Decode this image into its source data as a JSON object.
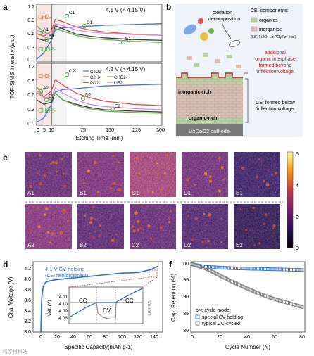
{
  "panels": {
    "a": {
      "label": "a",
      "ylabel": "TOF-SIMS Intensity (a.u.)",
      "xlabel": "Etching Time (min)",
      "xticks": [
        "0",
        "5",
        "10",
        "75",
        "150",
        "225",
        "300"
      ],
      "yticks": [
        "0.0",
        "0.3",
        "0.6",
        "0.9",
        "1.2"
      ],
      "top_title": "4.1 V (< 4.15 V)",
      "bottom_title": "4.2 V (> 4.15 V)",
      "species": {
        "ch": "CH2-",
        "cho": "CHO2-"
      },
      "legend": [
        "CoO2-",
        "C2H-",
        "PO2-",
        "CHO2-",
        "LiF2-"
      ],
      "points_top": [
        "A1",
        "B1",
        "C1",
        "D1",
        "E1"
      ],
      "points_bottom": [
        "A2",
        "B2",
        "C2",
        "D2",
        "E2"
      ]
    },
    "b": {
      "label": "b",
      "oxidation": "oxidation",
      "decomposition": "decomposition",
      "cei_title": "CEI components:",
      "organics": "organics",
      "inorganics": "inorganics",
      "inorganic_list": "(LiF, Li2O, LixPOyFz, etc.)",
      "additional": "additional",
      "organic_interphase": "organic interphase",
      "formed_beyond": "formed beyond",
      "inflection_q": "'inflection voltage'",
      "inorganic_rich": "inorganic-rich",
      "organic_rich": "organic-rich",
      "cei_below": "CEI formed below",
      "inflection_q2": "'inflection voltage'",
      "cathode": "LixCoO2 cathode"
    },
    "c": {
      "label": "c",
      "maps_top": [
        "A1",
        "B1",
        "C1",
        "D1",
        "E1"
      ],
      "maps_bottom": [
        "A2",
        "B2",
        "C2",
        "D2",
        "E2"
      ],
      "colorbar_ticks": [
        "6",
        "4",
        "2",
        "0"
      ]
    },
    "d": {
      "label": "d",
      "title": "4.1 V CV-holding",
      "subtitle": "(CEI reinforcement)",
      "ylabel": "Cha. Voltage (V)",
      "xlabel": "Specific Capacity(mAh g-1)",
      "xticks": [
        "0",
        "20",
        "40",
        "60",
        "80",
        "100",
        "120",
        "140"
      ],
      "yticks": [
        "3.0",
        "3.2",
        "3.4",
        "3.6",
        "3.8",
        "4.0",
        "4.2"
      ],
      "inset_ylabel": "Volt. (V)",
      "inset_yticks": [
        "4.11",
        "4.10",
        "4.09",
        "4.08"
      ],
      "inset_regions": [
        "CC",
        "CV",
        "CC"
      ],
      "inset_current": "Current"
    },
    "f": {
      "label": "f",
      "ylabel": "Cap. Retention (%)",
      "xlabel": "Cycle Number (N)",
      "xticks": [
        "0",
        "20",
        "40",
        "60",
        "80"
      ],
      "yticks": [
        "80",
        "85",
        "90",
        "95",
        "100"
      ],
      "legend_title": "pre-cycle mode:",
      "legend": [
        "special CV-holding",
        "typical CC-cycled"
      ]
    }
  },
  "watermark": "科学材料站",
  "chart_data": [
    {
      "type": "line",
      "title": "4.1 V (< 4.15 V)",
      "xlabel": "Etching Time (min)",
      "ylabel": "TOF-SIMS Intensity (a.u.)",
      "ylim": [
        0,
        1.35
      ],
      "x": [
        0,
        5,
        10,
        20,
        40,
        75,
        110,
        150,
        225,
        300
      ],
      "series": [
        {
          "name": "CoO2-",
          "values": [
            0.05,
            0.2,
            0.5,
            0.75,
            0.8,
            0.82,
            0.84,
            0.86,
            0.88,
            0.9
          ]
        },
        {
          "name": "C2H-",
          "values": [
            0.66,
            0.6,
            0.72,
            1.0,
            0.95,
            0.82,
            0.75,
            0.7,
            0.65,
            0.62
          ]
        },
        {
          "name": "PO2-",
          "values": [
            0.55,
            0.5,
            0.55,
            0.85,
            0.78,
            0.65,
            0.6,
            0.56,
            0.52,
            0.5
          ]
        },
        {
          "name": "CHO2-",
          "values": [
            0.85,
            0.7,
            0.62,
            0.78,
            0.72,
            0.62,
            0.55,
            0.52,
            0.48,
            0.45
          ]
        },
        {
          "name": "LiF2-",
          "values": [
            0.75,
            0.65,
            0.65,
            0.9,
            0.85,
            0.75,
            0.7,
            0.67,
            0.64,
            0.62
          ]
        }
      ]
    },
    {
      "type": "line",
      "title": "4.2 V (> 4.15 V)",
      "xlabel": "Etching Time (min)",
      "ylabel": "TOF-SIMS Intensity (a.u.)",
      "ylim": [
        0,
        1.35
      ],
      "x": [
        0,
        5,
        10,
        20,
        40,
        75,
        110,
        150,
        225,
        300
      ],
      "series": [
        {
          "name": "CoO2-",
          "values": [
            0.05,
            0.15,
            0.45,
            0.72,
            0.78,
            0.8,
            0.83,
            0.86,
            0.88,
            0.9
          ]
        },
        {
          "name": "C2H-",
          "values": [
            0.7,
            0.62,
            0.75,
            1.0,
            0.88,
            0.7,
            0.6,
            0.52,
            0.45,
            0.42
          ]
        },
        {
          "name": "PO2-",
          "values": [
            0.55,
            0.45,
            0.5,
            0.7,
            0.55,
            0.45,
            0.38,
            0.33,
            0.3,
            0.28
          ]
        },
        {
          "name": "CHO2-",
          "values": [
            0.85,
            0.6,
            0.55,
            0.7,
            0.55,
            0.42,
            0.35,
            0.3,
            0.27,
            0.25
          ]
        },
        {
          "name": "LiF2-",
          "values": [
            0.75,
            0.6,
            0.6,
            0.82,
            0.7,
            0.55,
            0.45,
            0.4,
            0.36,
            0.33
          ]
        }
      ]
    },
    {
      "type": "line",
      "title": "4.1 V CV-holding",
      "xlabel": "Specific Capacity(mAh g-1)",
      "ylabel": "Cha. Voltage (V)",
      "ylim": [
        3.0,
        4.3
      ],
      "series": [
        {
          "x": [
            0,
            1,
            3,
            6,
            12,
            20,
            40,
            60,
            80,
            100,
            120,
            135,
            145
          ],
          "values": [
            3.0,
            3.6,
            3.85,
            3.92,
            3.95,
            3.97,
            4.0,
            4.03,
            4.06,
            4.09,
            4.1,
            4.15,
            4.22
          ]
        }
      ]
    },
    {
      "type": "scatter",
      "xlabel": "Cycle Number (N)",
      "ylabel": "Cap. Retention (%)",
      "ylim": [
        80,
        100.5
      ],
      "series": [
        {
          "name": "special CV-holding",
          "x": [
            0,
            10,
            20,
            30,
            40,
            50,
            60,
            70,
            80
          ],
          "values": [
            99.7,
            99.0,
            98.8,
            98.6,
            98.5,
            98.4,
            98.3,
            98.2,
            98.1
          ]
        },
        {
          "name": "typical CC-cycled",
          "x": [
            0,
            10,
            20,
            30,
            40,
            50,
            60,
            70,
            80
          ],
          "values": [
            99.8,
            98.5,
            96.5,
            94.5,
            92.7,
            91.0,
            89.6,
            88.5,
            87.3
          ]
        }
      ]
    }
  ],
  "colors": {
    "coo2": "#3b6fd8",
    "c2h": "#e0504a",
    "po2": "#3a3a3a",
    "cho2": "#6ab04c",
    "lif2": "#d98be0",
    "ch_label": "#e07b39",
    "cho_label": "#4caf50",
    "accent_red": "#b22222",
    "cv_blue": "#2f6fd0",
    "cc_gray": "#7a7a7a"
  }
}
